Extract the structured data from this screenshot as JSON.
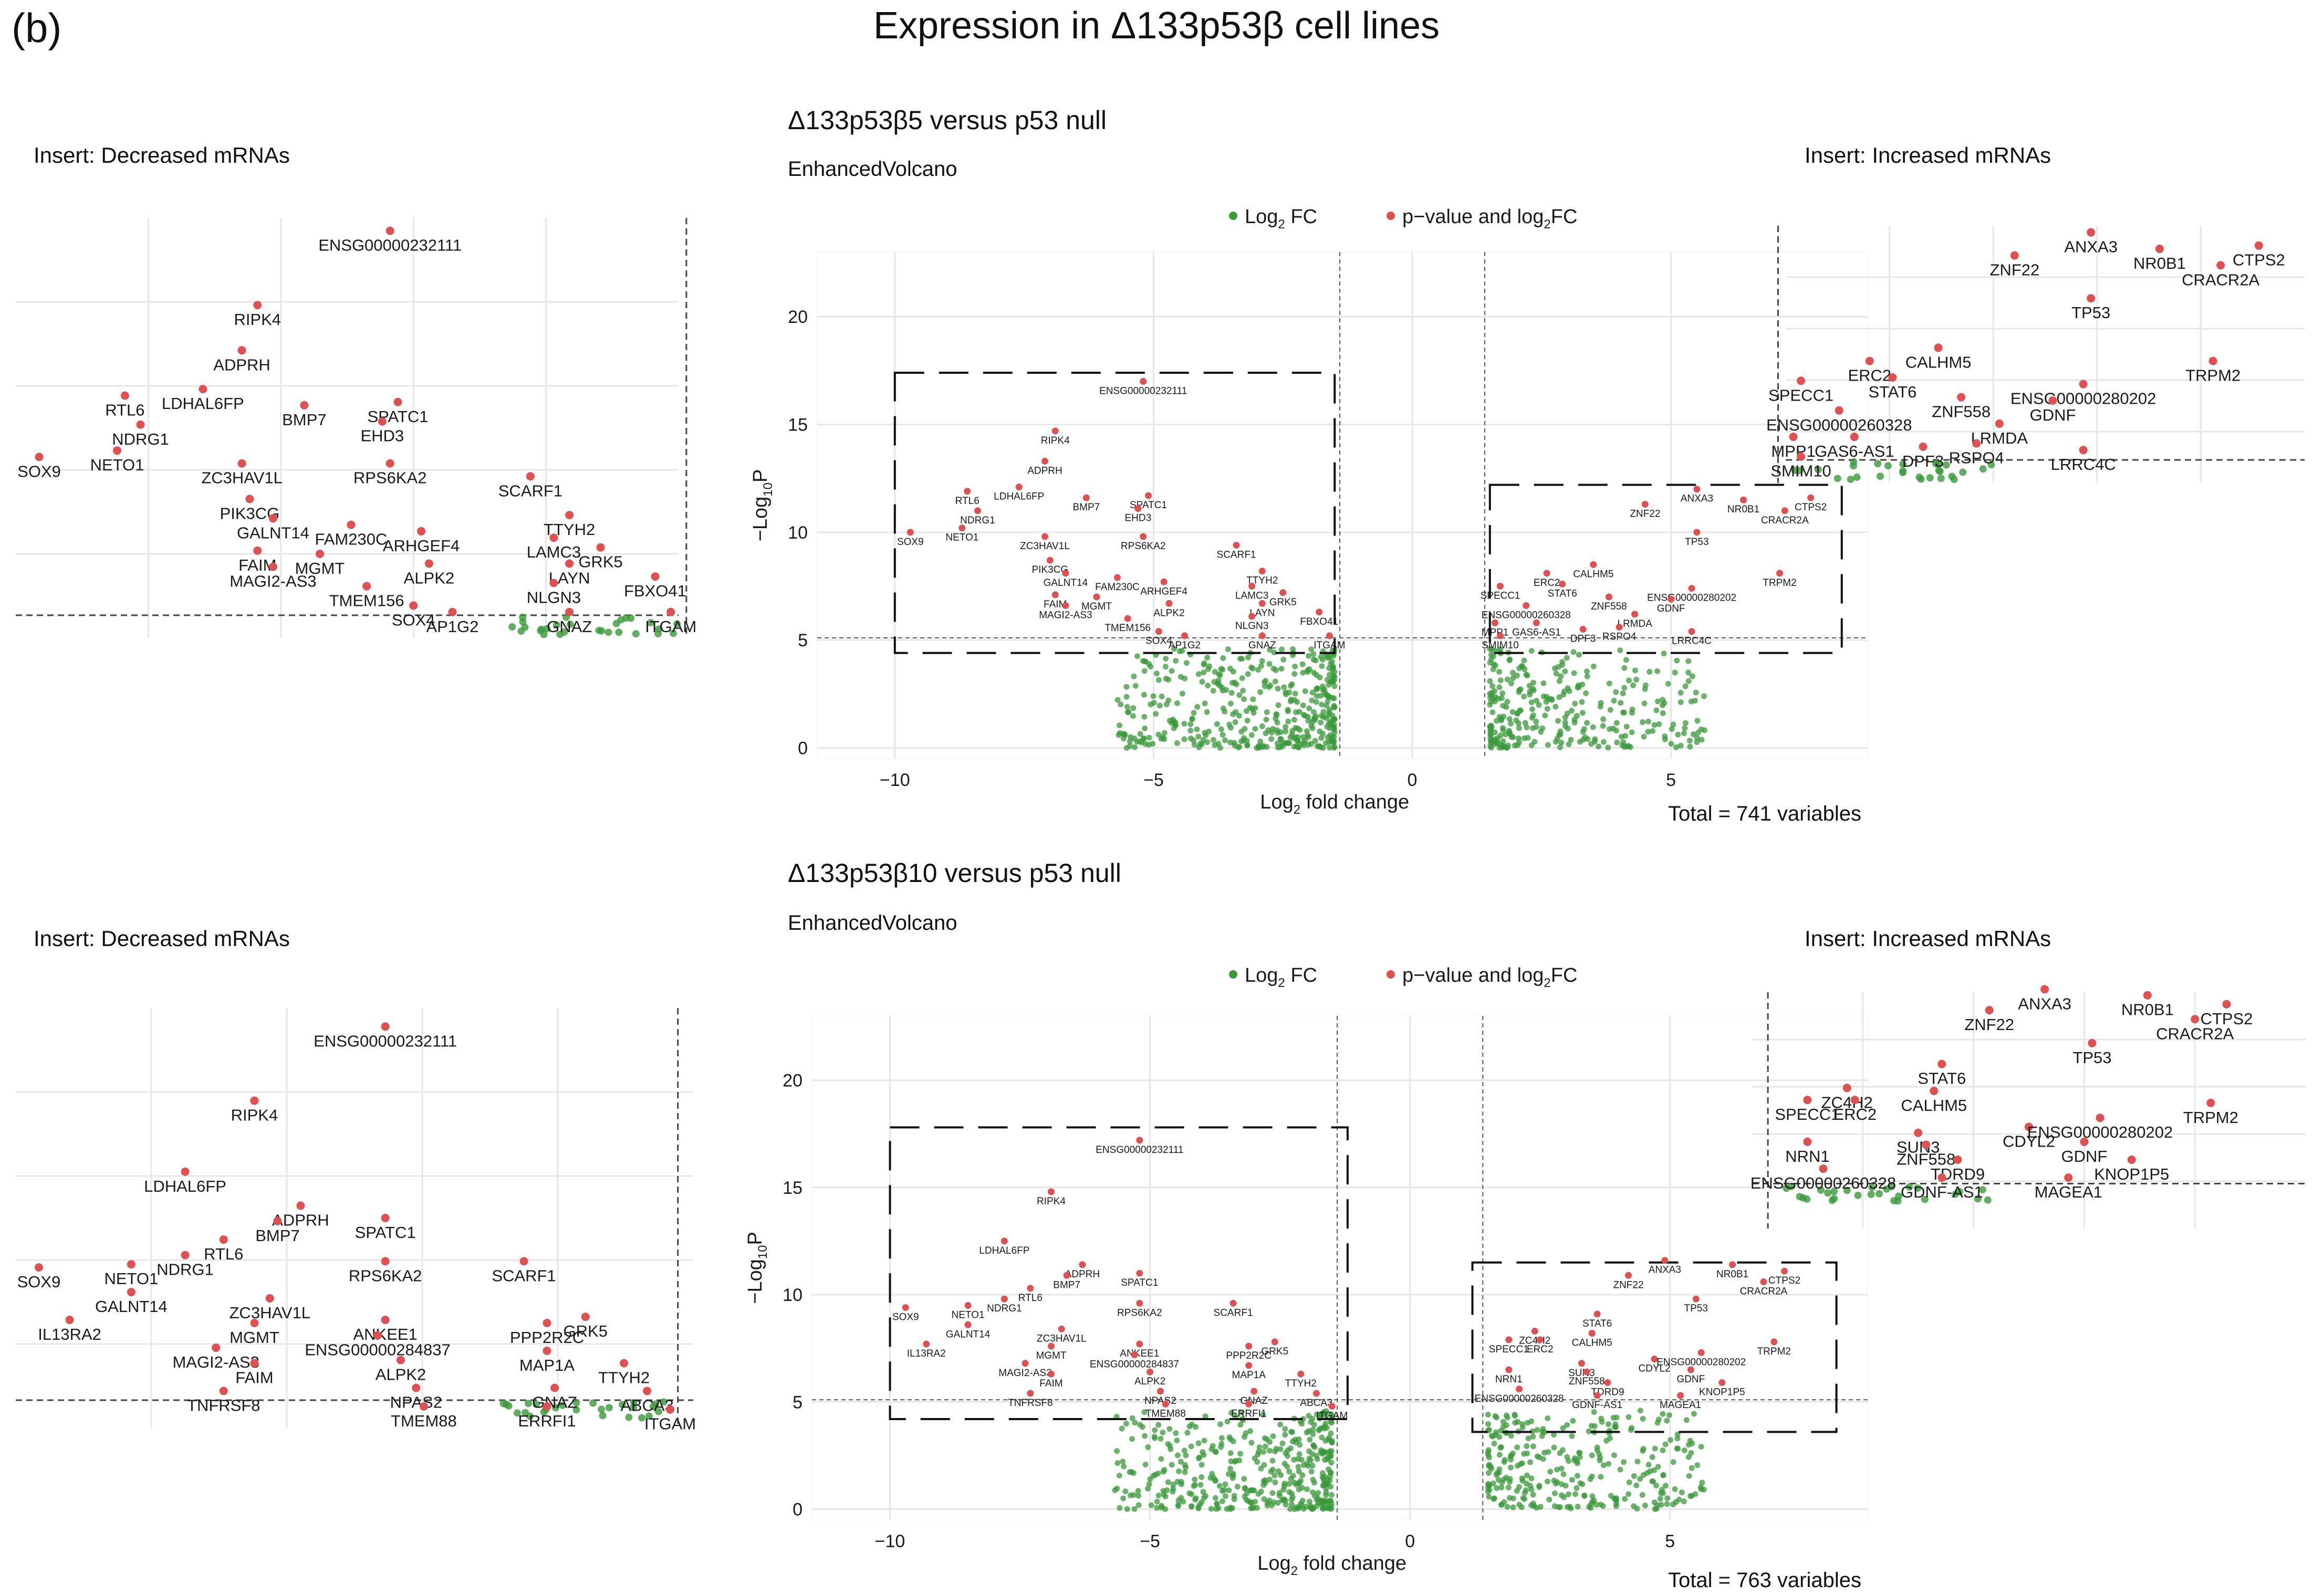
{
  "figure": {
    "panel_label": "(b)",
    "title": "Expression in Δ133p53β cell lines"
  },
  "colors": {
    "ns": "#3a9a3a",
    "sig": "#e05050",
    "text": "#1a1a1a",
    "grid": "#e6e6e6"
  },
  "chart_data": [
    {
      "type": "scatter",
      "title": "Δ133p53β5 versus p53 null",
      "caption": "EnhancedVolcano",
      "xlabel_main": "Log",
      "xlabel_sub": "2",
      "xlabel_rest": " fold change",
      "ylabel_main": "−Log",
      "ylabel_sub": "10",
      "ylabel_rest": "P",
      "xlim": [
        -11.5,
        8.8
      ],
      "ylim": [
        -0.5,
        23
      ],
      "xticks": [
        -10,
        -5,
        0,
        5
      ],
      "yticks": [
        0,
        5,
        10,
        15,
        20
      ],
      "fc_cutoff": 1.4,
      "p_cutoff": 5.1,
      "legend": [
        "Log",
        "2",
        " FC",
        "p−value and log",
        "2",
        "FC"
      ],
      "total": "Total = 741 variables",
      "insert_decreased_title": "Insert: Decreased mRNAs",
      "insert_increased_title": "Insert: Increased mRNAs",
      "box_decreased": {
        "x": [
          -10.0,
          -1.5
        ],
        "y": [
          4.4,
          17.4
        ]
      },
      "box_increased": {
        "x": [
          1.5,
          8.3
        ],
        "y": [
          4.4,
          12.2
        ]
      },
      "decreased": [
        {
          "name": "ENSG00000232111",
          "x": -5.2,
          "y": 17.0
        },
        {
          "name": "RIPK4",
          "x": -6.9,
          "y": 14.7
        },
        {
          "name": "ADPRH",
          "x": -7.1,
          "y": 13.3
        },
        {
          "name": "LDHAL6FP",
          "x": -7.6,
          "y": 12.1
        },
        {
          "name": "RTL6",
          "x": -8.6,
          "y": 11.9
        },
        {
          "name": "NDRG1",
          "x": -8.4,
          "y": 11.0
        },
        {
          "name": "BMP7",
          "x": -6.3,
          "y": 11.6
        },
        {
          "name": "SPATC1",
          "x": -5.1,
          "y": 11.7
        },
        {
          "name": "EHD3",
          "x": -5.3,
          "y": 11.1
        },
        {
          "name": "NETO1",
          "x": -8.7,
          "y": 10.2
        },
        {
          "name": "SOX9",
          "x": -9.7,
          "y": 10.0
        },
        {
          "name": "ZC3HAV1L",
          "x": -7.1,
          "y": 9.8
        },
        {
          "name": "RPS6KA2",
          "x": -5.2,
          "y": 9.8
        },
        {
          "name": "PIK3CG",
          "x": -7.0,
          "y": 8.7
        },
        {
          "name": "SCARF1",
          "x": -3.4,
          "y": 9.4
        },
        {
          "name": "GALNT14",
          "x": -6.7,
          "y": 8.1
        },
        {
          "name": "FAM230C",
          "x": -5.7,
          "y": 7.9
        },
        {
          "name": "TTYH2",
          "x": -2.9,
          "y": 8.2
        },
        {
          "name": "ARHGEF4",
          "x": -4.8,
          "y": 7.7
        },
        {
          "name": "LAMC3",
          "x": -3.1,
          "y": 7.5
        },
        {
          "name": "GRK5",
          "x": -2.5,
          "y": 7.2
        },
        {
          "name": "FAIM",
          "x": -6.9,
          "y": 7.1
        },
        {
          "name": "MGMT",
          "x": -6.1,
          "y": 7.0
        },
        {
          "name": "MAGI2-AS3",
          "x": -6.7,
          "y": 6.6
        },
        {
          "name": "LAYN",
          "x": -2.9,
          "y": 6.7
        },
        {
          "name": "ALPK2",
          "x": -4.7,
          "y": 6.7
        },
        {
          "name": "FBXO41",
          "x": -1.8,
          "y": 6.3
        },
        {
          "name": "TMEM156",
          "x": -5.5,
          "y": 6.0
        },
        {
          "name": "NLGN3",
          "x": -3.1,
          "y": 6.1
        },
        {
          "name": "SOX4",
          "x": -4.9,
          "y": 5.4
        },
        {
          "name": "AP1G2",
          "x": -4.4,
          "y": 5.2
        },
        {
          "name": "GNAZ",
          "x": -2.9,
          "y": 5.2
        },
        {
          "name": "ITGAM",
          "x": -1.6,
          "y": 5.2
        }
      ],
      "increased": [
        {
          "name": "ANXA3",
          "x": 5.5,
          "y": 12.0
        },
        {
          "name": "NR0B1",
          "x": 6.4,
          "y": 11.5
        },
        {
          "name": "CTPS2",
          "x": 7.7,
          "y": 11.6
        },
        {
          "name": "ZNF22",
          "x": 4.5,
          "y": 11.3
        },
        {
          "name": "CRACR2A",
          "x": 7.2,
          "y": 11.0
        },
        {
          "name": "TP53",
          "x": 5.5,
          "y": 10.0
        },
        {
          "name": "TRPM2",
          "x": 7.1,
          "y": 8.1
        },
        {
          "name": "CALHM5",
          "x": 3.5,
          "y": 8.5
        },
        {
          "name": "ERC2",
          "x": 2.6,
          "y": 8.1
        },
        {
          "name": "STAT6",
          "x": 2.9,
          "y": 7.6
        },
        {
          "name": "SPECC1",
          "x": 1.7,
          "y": 7.5
        },
        {
          "name": "ENSG00000280202",
          "x": 5.4,
          "y": 7.4
        },
        {
          "name": "ZNF558",
          "x": 3.8,
          "y": 7.0
        },
        {
          "name": "GDNF",
          "x": 5.0,
          "y": 6.9
        },
        {
          "name": "ENSG00000260328",
          "x": 2.2,
          "y": 6.6
        },
        {
          "name": "LRMDA",
          "x": 4.3,
          "y": 6.2
        },
        {
          "name": "MPP1",
          "x": 1.6,
          "y": 5.8
        },
        {
          "name": "GAS6-AS1",
          "x": 2.4,
          "y": 5.8
        },
        {
          "name": "DPF3",
          "x": 3.3,
          "y": 5.5
        },
        {
          "name": "RSPO4",
          "x": 4.0,
          "y": 5.6
        },
        {
          "name": "LRRC4C",
          "x": 5.4,
          "y": 5.4
        },
        {
          "name": "SMIM10",
          "x": 1.7,
          "y": 5.2
        }
      ],
      "seed": 7
    },
    {
      "type": "scatter",
      "title": "Δ133p53β10 versus p53 null",
      "caption": "EnhancedVolcano",
      "xlabel_main": "Log",
      "xlabel_sub": "2",
      "xlabel_rest": " fold change",
      "ylabel_main": "−Log",
      "ylabel_sub": "10",
      "ylabel_rest": "P",
      "xlim": [
        -11.5,
        8.8
      ],
      "ylim": [
        -0.5,
        23
      ],
      "xticks": [
        -10,
        -5,
        0,
        5
      ],
      "yticks": [
        0,
        5,
        10,
        15,
        20
      ],
      "fc_cutoff": 1.4,
      "p_cutoff": 5.1,
      "legend": [
        "Log",
        "2",
        " FC",
        "p−value and log",
        "2",
        "FC"
      ],
      "total": "Total = 763 variables",
      "insert_decreased_title": "Insert: Decreased mRNAs",
      "insert_increased_title": "Insert: Increased mRNAs",
      "box_decreased": {
        "x": [
          -10.0,
          -1.2
        ],
        "y": [
          4.2,
          17.8
        ]
      },
      "box_increased": {
        "x": [
          1.2,
          8.2
        ],
        "y": [
          3.6,
          11.5
        ]
      },
      "decreased": [
        {
          "name": "ENSG00000232111",
          "x": -5.2,
          "y": 17.2
        },
        {
          "name": "RIPK4",
          "x": -6.9,
          "y": 14.8
        },
        {
          "name": "LDHAL6FP",
          "x": -7.8,
          "y": 12.5
        },
        {
          "name": "ADPRH",
          "x": -6.3,
          "y": 11.4
        },
        {
          "name": "BMP7",
          "x": -6.6,
          "y": 10.9
        },
        {
          "name": "SPATC1",
          "x": -5.2,
          "y": 11.0
        },
        {
          "name": "RTL6",
          "x": -7.3,
          "y": 10.3
        },
        {
          "name": "NDRG1",
          "x": -7.8,
          "y": 9.8
        },
        {
          "name": "NETO1",
          "x": -8.5,
          "y": 9.5
        },
        {
          "name": "SOX9",
          "x": -9.7,
          "y": 9.4
        },
        {
          "name": "GALNT14",
          "x": -8.5,
          "y": 8.6
        },
        {
          "name": "RPS6KA2",
          "x": -5.2,
          "y": 9.6
        },
        {
          "name": "SCARF1",
          "x": -3.4,
          "y": 9.6
        },
        {
          "name": "ZC3HAV1L",
          "x": -6.7,
          "y": 8.4
        },
        {
          "name": "ANKEE1",
          "x": -5.2,
          "y": 7.7
        },
        {
          "name": "ENSG00000284837",
          "x": -5.3,
          "y": 7.2
        },
        {
          "name": "MGMT",
          "x": -6.9,
          "y": 7.6
        },
        {
          "name": "IL13RA2",
          "x": -9.3,
          "y": 7.7
        },
        {
          "name": "MAGI2-AS3",
          "x": -7.4,
          "y": 6.8
        },
        {
          "name": "PPP2R2C",
          "x": -3.1,
          "y": 7.6
        },
        {
          "name": "GRK5",
          "x": -2.6,
          "y": 7.8
        },
        {
          "name": "MAP1A",
          "x": -3.1,
          "y": 6.7
        },
        {
          "name": "FAIM",
          "x": -6.9,
          "y": 6.3
        },
        {
          "name": "ALPK2",
          "x": -5.0,
          "y": 6.4
        },
        {
          "name": "TTYH2",
          "x": -2.1,
          "y": 6.3
        },
        {
          "name": "NPAS2",
          "x": -4.8,
          "y": 5.5
        },
        {
          "name": "GNAZ",
          "x": -3.0,
          "y": 5.5
        },
        {
          "name": "TNFRSF8",
          "x": -7.3,
          "y": 5.4
        },
        {
          "name": "ABCA3",
          "x": -1.8,
          "y": 5.4
        },
        {
          "name": "TMEM88",
          "x": -4.7,
          "y": 4.9
        },
        {
          "name": "ERRFI1",
          "x": -3.1,
          "y": 4.9
        },
        {
          "name": "ITGAM",
          "x": -1.5,
          "y": 4.8
        }
      ],
      "increased": [
        {
          "name": "ANXA3",
          "x": 4.9,
          "y": 11.6
        },
        {
          "name": "NR0B1",
          "x": 6.2,
          "y": 11.4
        },
        {
          "name": "CTPS2",
          "x": 7.2,
          "y": 11.1
        },
        {
          "name": "ZNF22",
          "x": 4.2,
          "y": 10.9
        },
        {
          "name": "CRACR2A",
          "x": 6.8,
          "y": 10.6
        },
        {
          "name": "TP53",
          "x": 5.5,
          "y": 9.8
        },
        {
          "name": "TRPM2",
          "x": 7.0,
          "y": 7.8
        },
        {
          "name": "STAT6",
          "x": 3.6,
          "y": 9.1
        },
        {
          "name": "ZC4H2",
          "x": 2.4,
          "y": 8.3
        },
        {
          "name": "CALHM5",
          "x": 3.5,
          "y": 8.2
        },
        {
          "name": "SPECC1",
          "x": 1.9,
          "y": 7.9
        },
        {
          "name": "ERC2",
          "x": 2.5,
          "y": 7.9
        },
        {
          "name": "CDYL2",
          "x": 4.7,
          "y": 7.0
        },
        {
          "name": "ENSG00000280202",
          "x": 5.6,
          "y": 7.3
        },
        {
          "name": "SUN3",
          "x": 3.3,
          "y": 6.8
        },
        {
          "name": "ZNF558",
          "x": 3.4,
          "y": 6.4
        },
        {
          "name": "GDNF",
          "x": 5.4,
          "y": 6.5
        },
        {
          "name": "NRN1",
          "x": 1.9,
          "y": 6.5
        },
        {
          "name": "TDRD9",
          "x": 3.8,
          "y": 5.9
        },
        {
          "name": "KNOP1P5",
          "x": 6.0,
          "y": 5.9
        },
        {
          "name": "ENSG00000260328",
          "x": 2.1,
          "y": 5.6
        },
        {
          "name": "GDNF-AS1",
          "x": 3.6,
          "y": 5.3
        },
        {
          "name": "MAGEA1",
          "x": 5.2,
          "y": 5.3
        }
      ],
      "seed": 19
    }
  ]
}
